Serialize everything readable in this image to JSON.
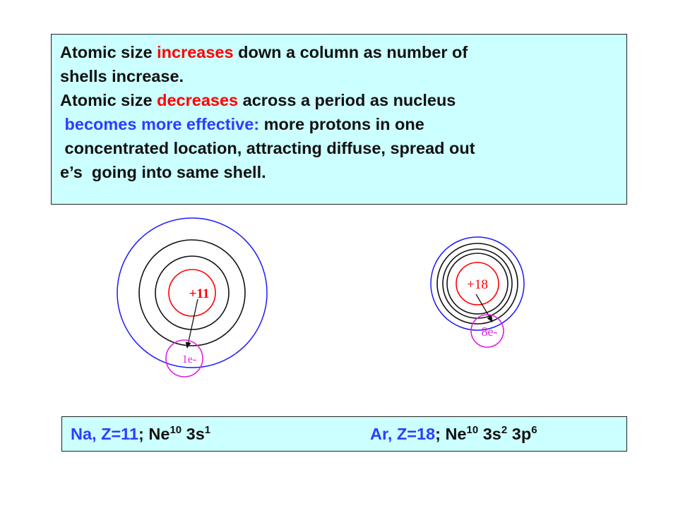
{
  "summary": {
    "line1": {
      "a": "Atomic size ",
      "highlight": "increases",
      "b": " down a column as number of"
    },
    "line2": "shells increase.",
    "line3": {
      "a": "Atomic size ",
      "highlight": "decreases",
      "b": " across a period as nucleus"
    },
    "line4": {
      "highlight": " becomes more effective:",
      "b": " more protons in one"
    },
    "line5": " concentrated location, attracting diffuse, spread out",
    "line6": "e’s  going into same shell."
  },
  "sodium_atom": {
    "nucleus_label": "+11",
    "electron_label": "1e-"
  },
  "argon_atom": {
    "nucleus_label": "+18",
    "electron_label": "8e-"
  },
  "configurations": {
    "na": {
      "element": "Na, Z=11",
      "sep": "; Ne",
      "core_sup": "10",
      "orbital": " 3s",
      "orbital_sup": "1"
    },
    "ar": {
      "element": "Ar, Z=18",
      "sep": "; Ne",
      "core_sup": "10",
      "orbital1": " 3s",
      "orbital1_sup": "2",
      "orbital2": " 3p",
      "orbital2_sup": "6"
    }
  },
  "colors": {
    "highlight_red": "#ff0000",
    "highlight_blue": "#2c3dff",
    "box_fill": "#ccffff",
    "outer_shell": "#1a1aff",
    "nucleus": "#ff0000",
    "electron_group": "#e020e0"
  }
}
